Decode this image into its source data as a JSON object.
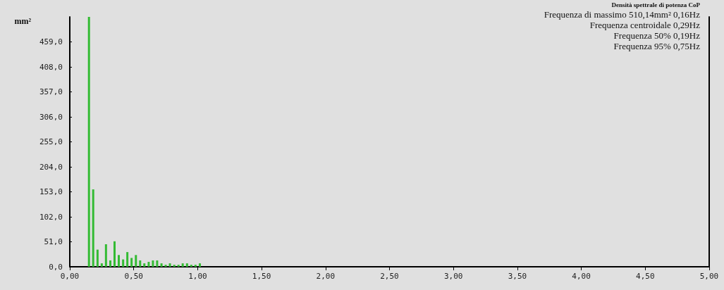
{
  "chart_data": {
    "type": "bar",
    "title": "Densità spettrale di potenza CoP",
    "ylabel": "mm²",
    "annotations": [
      "Frequenza di massimo 510,14mm² 0,16Hz",
      "Frequenza centroidale 0,29Hz",
      "Frequenza 50% 0,19Hz",
      "Frequenza 95% 0,75Hz"
    ],
    "x": [
      0.15,
      0.183,
      0.217,
      0.25,
      0.283,
      0.317,
      0.35,
      0.383,
      0.417,
      0.45,
      0.483,
      0.517,
      0.55,
      0.583,
      0.617,
      0.65,
      0.683,
      0.717,
      0.75,
      0.783,
      0.817,
      0.85,
      0.883,
      0.917,
      0.95,
      0.983,
      1.017
    ],
    "values": [
      510.14,
      158,
      35,
      7,
      46,
      13,
      52,
      24,
      15,
      30,
      18,
      24,
      13,
      7,
      10,
      13,
      13,
      7,
      4,
      7,
      4,
      4,
      7,
      7,
      4,
      4,
      7
    ],
    "color": "#33bb33",
    "xlim": [
      0,
      5
    ],
    "xticks": [
      {
        "value": 0,
        "label": "0,00"
      },
      {
        "value": 0.5,
        "label": "0,50"
      },
      {
        "value": 1,
        "label": "1,00"
      },
      {
        "value": 1.5,
        "label": "1,50"
      },
      {
        "value": 2,
        "label": "2,00"
      },
      {
        "value": 2.5,
        "label": "2,50"
      },
      {
        "value": 3,
        "label": "3,00"
      },
      {
        "value": 3.5,
        "label": "3,50"
      },
      {
        "value": 4,
        "label": "4,00"
      },
      {
        "value": 4.5,
        "label": "4,50"
      },
      {
        "value": 5,
        "label": "5,00"
      }
    ],
    "ylim": [
      0,
      510.14
    ],
    "yticks": [
      {
        "value": 0,
        "label": "0,0"
      },
      {
        "value": 51,
        "label": "51,0"
      },
      {
        "value": 102,
        "label": "102,0"
      },
      {
        "value": 153,
        "label": "153,0"
      },
      {
        "value": 204,
        "label": "204,0"
      },
      {
        "value": 255,
        "label": "255,0"
      },
      {
        "value": 306,
        "label": "306,0"
      },
      {
        "value": 357,
        "label": "357,0"
      },
      {
        "value": 408,
        "label": "408,0"
      },
      {
        "value": 459,
        "label": "459,0"
      }
    ],
    "grid": false
  }
}
